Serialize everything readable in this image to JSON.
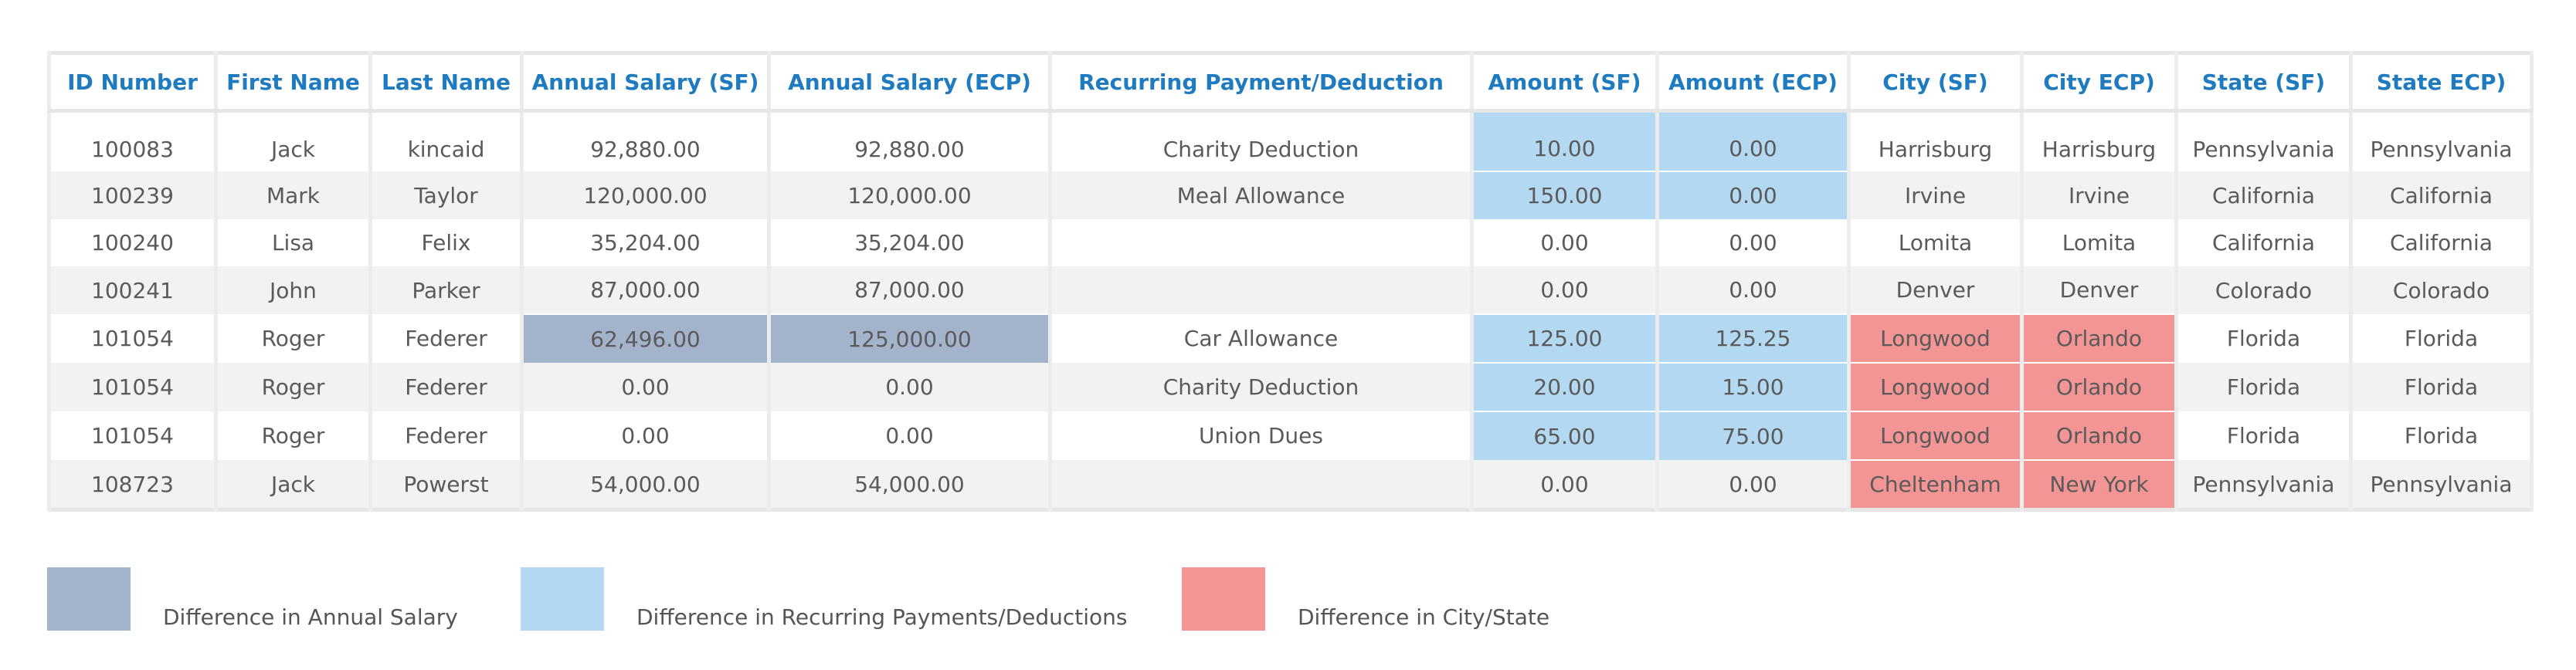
{
  "table": {
    "headers": [
      "ID Number",
      "First Name",
      "Last Name",
      "Annual Salary (SF)",
      "Annual Salary (ECP)",
      "Recurring Payment/Deduction",
      "Amount (SF)",
      "Amount (ECP)",
      "City (SF)",
      "City ECP)",
      "State (SF)",
      "State ECP)"
    ],
    "rows": [
      {
        "cells": [
          "100083",
          "Jack",
          "kincaid",
          "92,880.00",
          "92,880.00",
          "Charity Deduction",
          "10.00",
          "0.00",
          "Harrisburg",
          "Harrisburg",
          "Pennsylvania",
          "Pennsylvania"
        ]
      },
      {
        "cells": [
          "100239",
          "Mark",
          "Taylor",
          "120,000.00",
          "120,000.00",
          "Meal Allowance",
          "150.00",
          "0.00",
          "Irvine",
          "Irvine",
          "California",
          "California"
        ]
      },
      {
        "cells": [
          "100240",
          "Lisa",
          "Felix",
          "35,204.00",
          "35,204.00",
          "",
          "0.00",
          "0.00",
          "Lomita",
          "Lomita",
          "California",
          "California"
        ]
      },
      {
        "cells": [
          "100241",
          "John",
          "Parker",
          "87,000.00",
          "87,000.00",
          "",
          "0.00",
          "0.00",
          "Denver",
          "Denver",
          "Colorado",
          "Colorado"
        ]
      },
      {
        "cells": [
          "101054",
          "Roger",
          "Federer",
          "62,496.00",
          "125,000.00",
          "Car Allowance",
          "125.00",
          "125.25",
          "Longwood",
          "Orlando",
          "Florida",
          "Florida"
        ]
      },
      {
        "cells": [
          "101054",
          "Roger",
          "Federer",
          "0.00",
          "0.00",
          "Charity Deduction",
          "20.00",
          "15.00",
          "Longwood",
          "Orlando",
          "Florida",
          "Florida"
        ]
      },
      {
        "cells": [
          "101054",
          "Roger",
          "Federer",
          "0.00",
          "0.00",
          "Union Dues",
          "65.00",
          "75.00",
          "Longwood",
          "Orlando",
          "Florida",
          "Florida"
        ]
      },
      {
        "cells": [
          "108723",
          "Jack",
          "Powerst",
          "54,000.00",
          "54,000.00",
          "",
          "0.00",
          "0.00",
          "Cheltenham",
          "New York",
          "Pennsylvania",
          "Pennsylvania"
        ]
      }
    ]
  },
  "legend": {
    "salary_label": "Difference in Annual Salary",
    "payment_label": "Difference in Recurring Payments/Deductions",
    "city_label": "Difference in City/State"
  },
  "colors": {
    "salary_diff": "#a3b3cc",
    "payment_diff": "#b3d8f2",
    "city_diff": "#f49595",
    "header_text": "#1f7bbf"
  }
}
